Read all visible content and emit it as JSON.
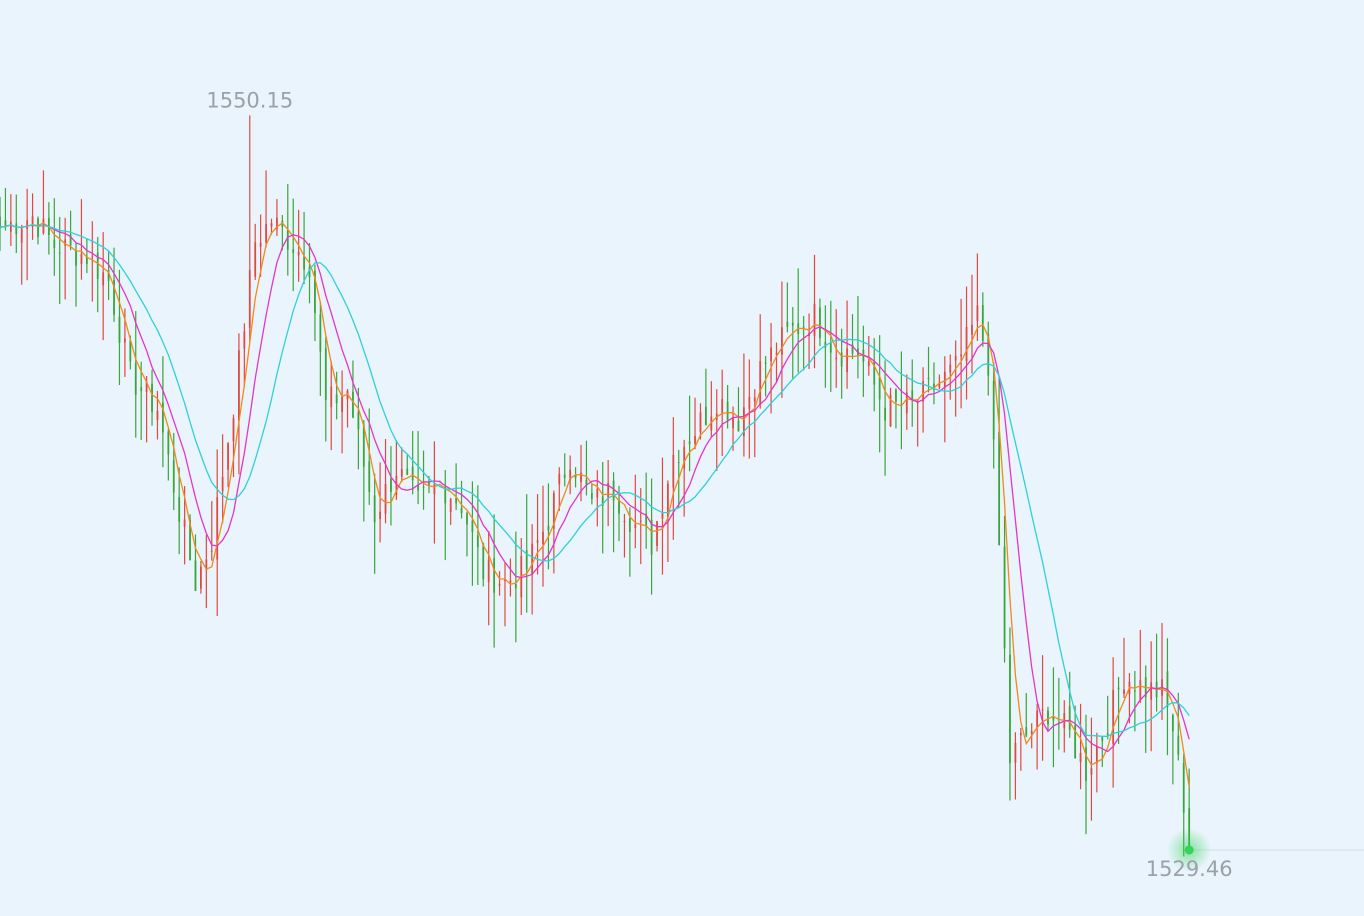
{
  "chart_data": {
    "type": "candlestick",
    "bar_count": 220,
    "ylim": [
      1527.6,
      1553.4
    ],
    "high_label": "1550.15",
    "last_label": "1529.46",
    "high_value": 1550.15,
    "last_value": 1529.46,
    "colors": {
      "up": "#e0493f",
      "down": "#3aa53a",
      "ma_fast": "#f08a1e",
      "ma_mid": "#e335c8",
      "ma_slow": "#2fd0d8",
      "last_dot": "#34d35a",
      "last_line": "#cfe0ea"
    },
    "close_keypoints": [
      [
        0,
        1547.0
      ],
      [
        6,
        1547.3
      ],
      [
        10,
        1546.5
      ],
      [
        16,
        1546.2
      ],
      [
        20,
        1545.5
      ],
      [
        24,
        1542.8
      ],
      [
        29,
        1541.9
      ],
      [
        33,
        1539.0
      ],
      [
        36,
        1537.0
      ],
      [
        39,
        1538.2
      ],
      [
        43,
        1542.0
      ],
      [
        47,
        1546.6
      ],
      [
        50,
        1547.2
      ],
      [
        53,
        1546.7
      ],
      [
        57,
        1546.0
      ],
      [
        60,
        1542.0
      ],
      [
        64,
        1542.4
      ],
      [
        69,
        1538.9
      ],
      [
        73,
        1540.2
      ],
      [
        77,
        1539.2
      ],
      [
        81,
        1539.8
      ],
      [
        85,
        1539.2
      ],
      [
        89,
        1537.3
      ],
      [
        93,
        1537.0
      ],
      [
        97,
        1537.4
      ],
      [
        101,
        1538.8
      ],
      [
        105,
        1540.6
      ],
      [
        109,
        1539.2
      ],
      [
        113,
        1539.6
      ],
      [
        117,
        1538.6
      ],
      [
        120,
        1538.1
      ],
      [
        124,
        1540.6
      ],
      [
        128,
        1541.3
      ],
      [
        132,
        1542.2
      ],
      [
        136,
        1541.6
      ],
      [
        140,
        1543.0
      ],
      [
        145,
        1544.0
      ],
      [
        150,
        1544.5
      ],
      [
        154,
        1543.5
      ],
      [
        158,
        1543.5
      ],
      [
        163,
        1541.9
      ],
      [
        168,
        1542.0
      ],
      [
        172,
        1542.5
      ],
      [
        176,
        1543.0
      ],
      [
        180,
        1544.5
      ],
      [
        182,
        1543.2
      ],
      [
        184,
        1538.0
      ],
      [
        186,
        1532.0
      ],
      [
        188,
        1532.5
      ],
      [
        193,
        1533.4
      ],
      [
        197,
        1532.7
      ],
      [
        200,
        1531.7
      ],
      [
        203,
        1532.7
      ],
      [
        207,
        1534.4
      ],
      [
        211,
        1534.0
      ],
      [
        214,
        1533.9
      ],
      [
        216,
        1532.9
      ],
      [
        218,
        1530.8
      ],
      [
        219,
        1529.46
      ]
    ]
  }
}
